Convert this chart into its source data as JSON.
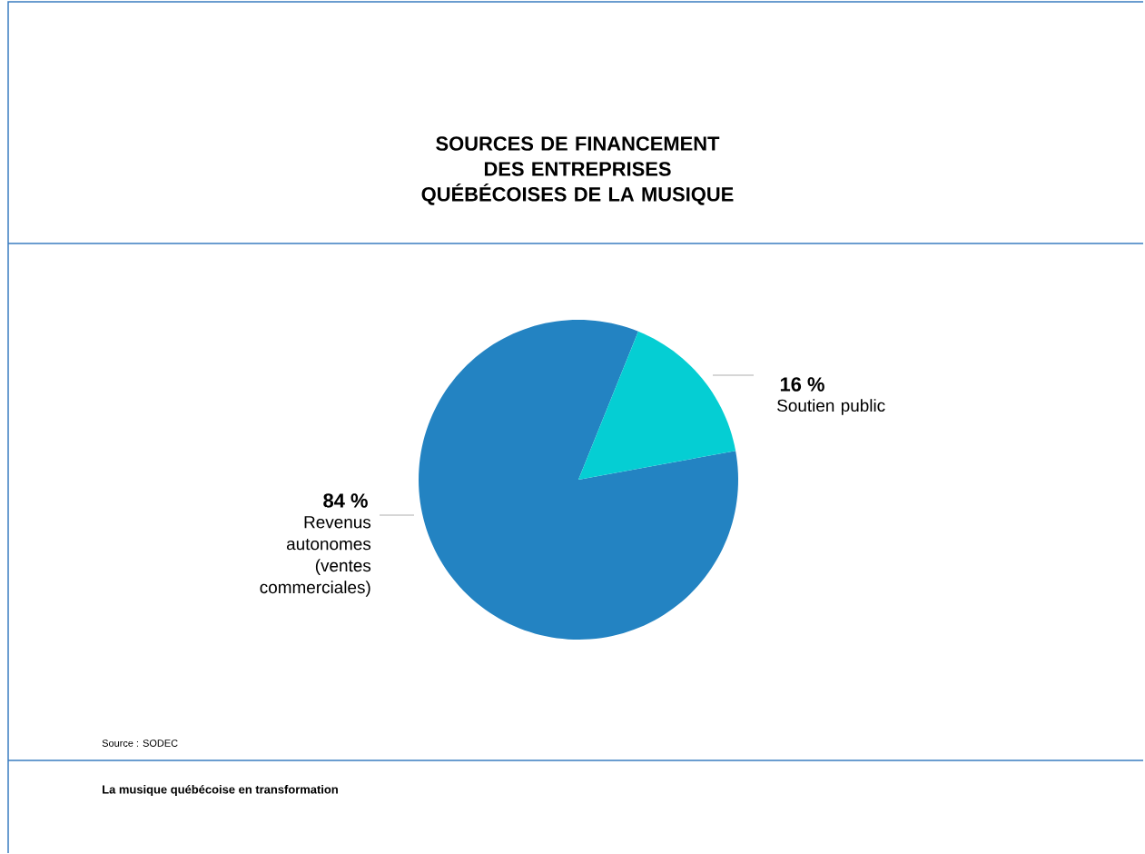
{
  "chart_data": {
    "type": "pie",
    "title": "SOURCES DE FINANCEMENT DES ENTREPRISES QUÉBÉCOISES DE LA MUSIQUE",
    "categories": [
      "Revenus autonomes (ventes commerciales)",
      "Soutien public"
    ],
    "values": [
      84,
      16
    ],
    "colors": [
      "#2383c2",
      "#05ced3"
    ],
    "value_labels": [
      "84 %",
      "16 %"
    ],
    "annotations": [
      "Source : SODEC",
      "La musique québécoise en transformation"
    ]
  }
}
